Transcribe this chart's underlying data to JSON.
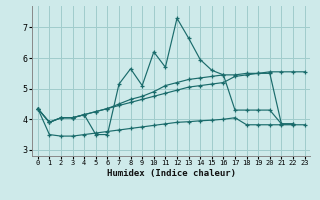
{
  "title": "",
  "xlabel": "Humidex (Indice chaleur)",
  "background_color": "#ceeaea",
  "grid_color": "#a0cccc",
  "line_color": "#1a6b6b",
  "xlim": [
    -0.5,
    23.5
  ],
  "ylim": [
    2.8,
    7.7
  ],
  "xticks": [
    0,
    1,
    2,
    3,
    4,
    5,
    6,
    7,
    8,
    9,
    10,
    11,
    12,
    13,
    14,
    15,
    16,
    17,
    18,
    19,
    20,
    21,
    22,
    23
  ],
  "yticks": [
    3,
    4,
    5,
    6,
    7
  ],
  "line1_x": [
    0,
    1,
    2,
    3,
    4,
    5,
    6,
    7,
    8,
    9,
    10,
    11,
    12,
    13,
    14,
    15,
    16,
    17,
    18,
    19,
    20,
    21,
    22
  ],
  "line1_y": [
    4.35,
    3.9,
    4.05,
    4.05,
    4.15,
    3.5,
    3.5,
    5.15,
    5.65,
    5.1,
    6.2,
    5.7,
    7.3,
    6.65,
    5.95,
    5.6,
    5.45,
    5.45,
    5.5,
    5.5,
    5.5,
    3.85,
    3.85
  ],
  "line2_x": [
    0,
    1,
    2,
    3,
    4,
    5,
    6,
    7,
    8,
    9,
    10,
    11,
    12,
    13,
    14,
    15,
    16,
    17,
    18,
    19,
    20,
    21,
    22,
    23
  ],
  "line2_y": [
    4.35,
    3.9,
    4.05,
    4.05,
    4.15,
    4.25,
    4.35,
    4.45,
    4.55,
    4.65,
    4.75,
    4.85,
    4.95,
    5.05,
    5.1,
    5.15,
    5.2,
    5.4,
    5.45,
    5.5,
    5.55,
    5.55,
    5.55,
    5.55
  ],
  "line3_x": [
    0,
    1,
    2,
    3,
    4,
    5,
    6,
    7,
    8,
    9,
    10,
    11,
    12,
    13,
    14,
    15,
    16,
    17,
    18,
    19,
    20,
    21,
    22
  ],
  "line3_y": [
    4.35,
    3.9,
    4.05,
    4.05,
    4.15,
    4.25,
    4.35,
    4.5,
    4.65,
    4.75,
    4.9,
    5.1,
    5.2,
    5.3,
    5.35,
    5.4,
    5.45,
    4.3,
    4.3,
    4.3,
    4.3,
    3.85,
    3.85
  ],
  "line4_x": [
    0,
    1,
    2,
    3,
    4,
    5,
    6,
    7,
    8,
    9,
    10,
    11,
    12,
    13,
    14,
    15,
    16,
    17,
    18,
    19,
    20,
    21,
    22,
    23
  ],
  "line4_y": [
    4.35,
    3.5,
    3.45,
    3.45,
    3.5,
    3.55,
    3.6,
    3.65,
    3.7,
    3.75,
    3.8,
    3.85,
    3.9,
    3.92,
    3.95,
    3.97,
    4.0,
    4.05,
    3.82,
    3.82,
    3.82,
    3.82,
    3.82,
    3.82
  ]
}
